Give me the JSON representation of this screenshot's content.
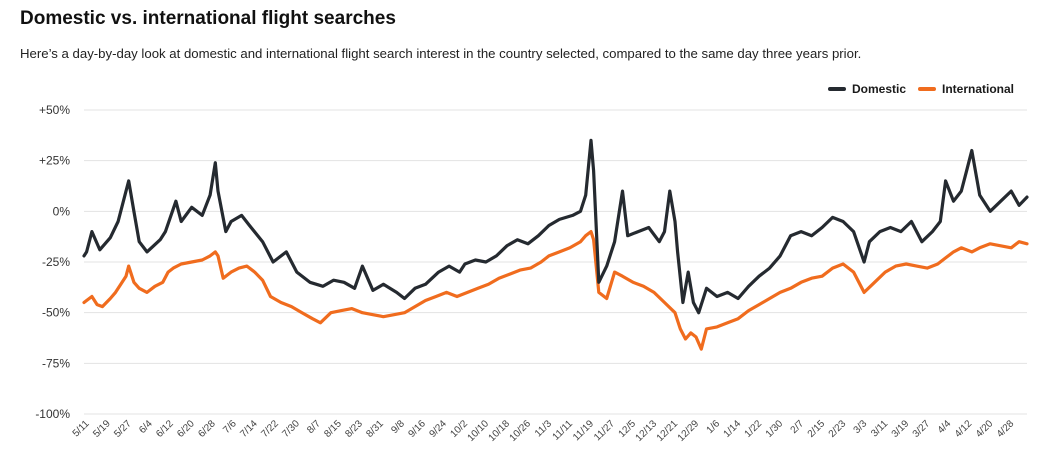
{
  "title": "Domestic vs. international flight searches",
  "subtitle": "Here’s a day-by-day look at domestic and international flight search interest in the country selected, compared to the same day three years prior.",
  "colors": {
    "domestic": "#252a30",
    "international": "#f06c1e",
    "grid": "#e3e3e3"
  },
  "chart_data": {
    "type": "line",
    "title": "Domestic vs. international flight searches",
    "legend_position": "top-right",
    "grid": true,
    "ylim": [
      -100,
      50
    ],
    "y_ticks": [
      50,
      25,
      0,
      -25,
      -50,
      -75,
      -100
    ],
    "y_tick_labels": [
      "+50%",
      "+25%",
      "0%",
      "-25%",
      "-50%",
      "-75%",
      "-100%"
    ],
    "x_ticks": [
      "5/11",
      "5/19",
      "5/27",
      "6/4",
      "6/12",
      "6/20",
      "6/28",
      "7/6",
      "7/14",
      "7/22",
      "7/30",
      "8/7",
      "8/15",
      "8/23",
      "8/31",
      "9/8",
      "9/16",
      "9/24",
      "10/2",
      "10/10",
      "10/18",
      "10/26",
      "11/3",
      "11/11",
      "11/19",
      "11/27",
      "12/5",
      "12/13",
      "12/21",
      "12/29",
      "1/6",
      "1/14",
      "1/22",
      "1/30",
      "2/7",
      "2/15",
      "2/23",
      "3/3",
      "3/11",
      "3/19",
      "3/27",
      "4/4",
      "4/12",
      "4/20",
      "4/28"
    ],
    "x_range": [
      "5/10",
      "5/4"
    ],
    "series": [
      {
        "name": "Domestic",
        "points": [
          [
            "5/10",
            -22
          ],
          [
            "5/11",
            -20
          ],
          [
            "5/13",
            -10
          ],
          [
            "5/16",
            -19
          ],
          [
            "5/20",
            -13
          ],
          [
            "5/23",
            -5
          ],
          [
            "5/26",
            10
          ],
          [
            "5/27",
            15
          ],
          [
            "5/29",
            0
          ],
          [
            "5/31",
            -15
          ],
          [
            "6/3",
            -20
          ],
          [
            "6/8",
            -14
          ],
          [
            "6/10",
            -10
          ],
          [
            "6/14",
            5
          ],
          [
            "6/16",
            -5
          ],
          [
            "6/20",
            2
          ],
          [
            "6/24",
            -2
          ],
          [
            "6/27",
            8
          ],
          [
            "6/29",
            24
          ],
          [
            "6/30",
            10
          ],
          [
            "7/3",
            -10
          ],
          [
            "7/5",
            -5
          ],
          [
            "7/9",
            -2
          ],
          [
            "7/12",
            -7
          ],
          [
            "7/17",
            -15
          ],
          [
            "7/21",
            -25
          ],
          [
            "7/26",
            -20
          ],
          [
            "7/30",
            -30
          ],
          [
            "8/4",
            -35
          ],
          [
            "8/9",
            -37
          ],
          [
            "8/13",
            -34
          ],
          [
            "8/17",
            -35
          ],
          [
            "8/21",
            -38
          ],
          [
            "8/24",
            -27
          ],
          [
            "8/28",
            -39
          ],
          [
            "9/1",
            -36
          ],
          [
            "9/6",
            -40
          ],
          [
            "9/9",
            -43
          ],
          [
            "9/13",
            -38
          ],
          [
            "9/17",
            -36
          ],
          [
            "9/22",
            -30
          ],
          [
            "9/26",
            -27
          ],
          [
            "9/30",
            -30
          ],
          [
            "10/2",
            -26
          ],
          [
            "10/6",
            -24
          ],
          [
            "10/10",
            -25
          ],
          [
            "10/14",
            -22
          ],
          [
            "10/18",
            -17
          ],
          [
            "10/22",
            -14
          ],
          [
            "10/26",
            -16
          ],
          [
            "10/30",
            -12
          ],
          [
            "11/3",
            -7
          ],
          [
            "11/7",
            -4
          ],
          [
            "11/12",
            -2
          ],
          [
            "11/15",
            0
          ],
          [
            "11/17",
            8
          ],
          [
            "11/19",
            35
          ],
          [
            "11/20",
            20
          ],
          [
            "11/22",
            -35
          ],
          [
            "11/25",
            -27
          ],
          [
            "11/28",
            -15
          ],
          [
            "12/1",
            10
          ],
          [
            "12/3",
            -12
          ],
          [
            "12/7",
            -10
          ],
          [
            "12/11",
            -8
          ],
          [
            "12/15",
            -15
          ],
          [
            "12/17",
            -10
          ],
          [
            "12/19",
            10
          ],
          [
            "12/21",
            -5
          ],
          [
            "12/22",
            -20
          ],
          [
            "12/24",
            -45
          ],
          [
            "12/26",
            -30
          ],
          [
            "12/28",
            -45
          ],
          [
            "12/30",
            -50
          ],
          [
            "1/2",
            -38
          ],
          [
            "1/6",
            -42
          ],
          [
            "1/10",
            -40
          ],
          [
            "1/14",
            -43
          ],
          [
            "1/18",
            -37
          ],
          [
            "1/22",
            -32
          ],
          [
            "1/26",
            -28
          ],
          [
            "1/30",
            -22
          ],
          [
            "2/3",
            -12
          ],
          [
            "2/7",
            -10
          ],
          [
            "2/11",
            -12
          ],
          [
            "2/15",
            -8
          ],
          [
            "2/19",
            -3
          ],
          [
            "2/23",
            -5
          ],
          [
            "2/27",
            -10
          ],
          [
            "3/3",
            -25
          ],
          [
            "3/5",
            -15
          ],
          [
            "3/9",
            -10
          ],
          [
            "3/13",
            -8
          ],
          [
            "3/17",
            -10
          ],
          [
            "3/21",
            -5
          ],
          [
            "3/25",
            -15
          ],
          [
            "3/29",
            -10
          ],
          [
            "4/1",
            -5
          ],
          [
            "4/3",
            15
          ],
          [
            "4/6",
            5
          ],
          [
            "4/9",
            10
          ],
          [
            "4/11",
            20
          ],
          [
            "4/13",
            30
          ],
          [
            "4/16",
            8
          ],
          [
            "4/20",
            0
          ],
          [
            "4/24",
            5
          ],
          [
            "4/28",
            10
          ],
          [
            "5/1",
            3
          ],
          [
            "5/4",
            7
          ]
        ]
      },
      {
        "name": "International",
        "points": [
          [
            "5/10",
            -45
          ],
          [
            "5/11",
            -44
          ],
          [
            "5/13",
            -42
          ],
          [
            "5/15",
            -46
          ],
          [
            "5/17",
            -47
          ],
          [
            "5/20",
            -43
          ],
          [
            "5/22",
            -40
          ],
          [
            "5/24",
            -36
          ],
          [
            "5/26",
            -32
          ],
          [
            "5/27",
            -27
          ],
          [
            "5/29",
            -35
          ],
          [
            "5/31",
            -38
          ],
          [
            "6/3",
            -40
          ],
          [
            "6/6",
            -37
          ],
          [
            "6/9",
            -35
          ],
          [
            "6/11",
            -30
          ],
          [
            "6/13",
            -28
          ],
          [
            "6/16",
            -26
          ],
          [
            "6/20",
            -25
          ],
          [
            "6/24",
            -24
          ],
          [
            "6/27",
            -22
          ],
          [
            "6/29",
            -20
          ],
          [
            "6/30",
            -22
          ],
          [
            "7/2",
            -33
          ],
          [
            "7/5",
            -30
          ],
          [
            "7/8",
            -28
          ],
          [
            "7/11",
            -27
          ],
          [
            "7/14",
            -30
          ],
          [
            "7/17",
            -34
          ],
          [
            "7/20",
            -42
          ],
          [
            "7/24",
            -45
          ],
          [
            "7/28",
            -47
          ],
          [
            "8/1",
            -50
          ],
          [
            "8/5",
            -53
          ],
          [
            "8/8",
            -55
          ],
          [
            "8/12",
            -50
          ],
          [
            "8/16",
            -49
          ],
          [
            "8/20",
            -48
          ],
          [
            "8/24",
            -50
          ],
          [
            "8/28",
            -51
          ],
          [
            "9/1",
            -52
          ],
          [
            "9/5",
            -51
          ],
          [
            "9/9",
            -50
          ],
          [
            "9/13",
            -47
          ],
          [
            "9/17",
            -44
          ],
          [
            "9/21",
            -42
          ],
          [
            "9/25",
            -40
          ],
          [
            "9/29",
            -42
          ],
          [
            "10/3",
            -40
          ],
          [
            "10/7",
            -38
          ],
          [
            "10/11",
            -36
          ],
          [
            "10/15",
            -33
          ],
          [
            "10/19",
            -31
          ],
          [
            "10/23",
            -29
          ],
          [
            "10/27",
            -28
          ],
          [
            "10/31",
            -25
          ],
          [
            "11/3",
            -22
          ],
          [
            "11/7",
            -20
          ],
          [
            "11/11",
            -18
          ],
          [
            "11/15",
            -15
          ],
          [
            "11/17",
            -12
          ],
          [
            "11/19",
            -10
          ],
          [
            "11/20",
            -14
          ],
          [
            "11/22",
            -40
          ],
          [
            "11/25",
            -43
          ],
          [
            "11/28",
            -30
          ],
          [
            "12/1",
            -32
          ],
          [
            "12/5",
            -35
          ],
          [
            "12/9",
            -37
          ],
          [
            "12/13",
            -40
          ],
          [
            "12/17",
            -45
          ],
          [
            "12/21",
            -50
          ],
          [
            "12/23",
            -58
          ],
          [
            "12/25",
            -63
          ],
          [
            "12/27",
            -60
          ],
          [
            "12/29",
            -62
          ],
          [
            "12/31",
            -68
          ],
          [
            "1/2",
            -58
          ],
          [
            "1/6",
            -57
          ],
          [
            "1/10",
            -55
          ],
          [
            "1/14",
            -53
          ],
          [
            "1/18",
            -49
          ],
          [
            "1/22",
            -46
          ],
          [
            "1/26",
            -43
          ],
          [
            "1/30",
            -40
          ],
          [
            "2/3",
            -38
          ],
          [
            "2/7",
            -35
          ],
          [
            "2/11",
            -33
          ],
          [
            "2/15",
            -32
          ],
          [
            "2/19",
            -28
          ],
          [
            "2/23",
            -26
          ],
          [
            "2/27",
            -30
          ],
          [
            "3/3",
            -40
          ],
          [
            "3/7",
            -35
          ],
          [
            "3/11",
            -30
          ],
          [
            "3/15",
            -27
          ],
          [
            "3/19",
            -26
          ],
          [
            "3/23",
            -27
          ],
          [
            "3/27",
            -28
          ],
          [
            "3/31",
            -26
          ],
          [
            "4/3",
            -23
          ],
          [
            "4/6",
            -20
          ],
          [
            "4/9",
            -18
          ],
          [
            "4/13",
            -20
          ],
          [
            "4/16",
            -18
          ],
          [
            "4/20",
            -16
          ],
          [
            "4/24",
            -17
          ],
          [
            "4/28",
            -18
          ],
          [
            "5/1",
            -15
          ],
          [
            "5/4",
            -16
          ]
        ]
      }
    ]
  }
}
